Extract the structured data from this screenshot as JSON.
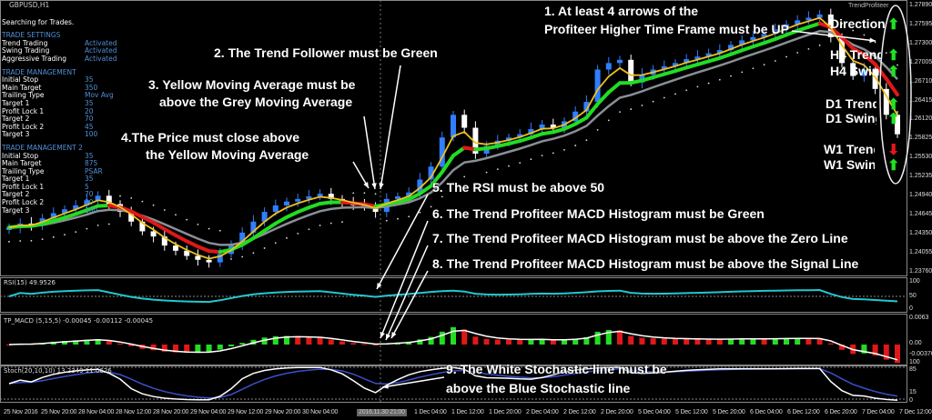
{
  "window": {
    "symbol": "GBPUSD,H1",
    "indicator_name": "TrendProfiteer"
  },
  "panel": {
    "status": "Searching for Trades.",
    "sections": [
      {
        "title": "TRADE SETTINGS",
        "rows": [
          [
            "Trend Trading",
            "Activated"
          ],
          [
            "Swing Trading",
            "Activated"
          ],
          [
            "Aggressive Trading",
            "Activated"
          ]
        ]
      },
      {
        "title": "TRADE MANAGEMENT",
        "rows": [
          [
            "Initial Stop",
            "35"
          ],
          [
            "Main Target",
            "350"
          ],
          [
            "Trailing Type",
            "Mov Avg"
          ],
          [
            "Target 1",
            "35"
          ],
          [
            "Profit Lock 1",
            "20"
          ],
          [
            "Target 2",
            "70"
          ],
          [
            "Profit Lock 2",
            "45"
          ],
          [
            "Target 3",
            "100"
          ]
        ]
      },
      {
        "title": "TRADE MANAGEMENT 2",
        "rows": [
          [
            "Initial Stop",
            "35"
          ],
          [
            "Main Target",
            "875"
          ],
          [
            "Trailing Type",
            "PSAR"
          ],
          [
            "Target 1",
            "35"
          ],
          [
            "Profit Lock 1",
            "5"
          ],
          [
            "Target 2",
            "70"
          ],
          [
            "Profit Lock 2",
            "20"
          ],
          [
            "Target 3",
            "100"
          ]
        ]
      }
    ]
  },
  "direction_panel": {
    "rows": [
      {
        "label": "Direction",
        "arrow": "up"
      },
      {
        "label": "H4 Trend",
        "arrow": "up"
      },
      {
        "label": "H4 Swing",
        "arrow": "up"
      },
      {
        "label": "D1 Trend",
        "arrow": "up"
      },
      {
        "label": "D1 Swing",
        "arrow": "up"
      },
      {
        "label": "W1 Trend",
        "arrow": "down"
      },
      {
        "label": "W1 Swing",
        "arrow": "up"
      }
    ],
    "colors": {
      "up": "#22e022",
      "down": "#e01818"
    }
  },
  "annotations": {
    "a1": [
      "1. At least 4 arrows of the",
      "Profiteer Higher Time Frame must be UP"
    ],
    "a2": "2. The Trend Follower must be Green",
    "a3": [
      "3. Yellow Moving Average must be",
      "above the Grey Moving Average"
    ],
    "a4": [
      "4.The Price must close above",
      "the Yellow Moving Average"
    ],
    "a5": "5. The RSI must be above 50",
    "a6": "6. The Trend Profiteer MACD Histogram must be Green",
    "a7": "7. The Trend Profiteer MACD Histogram must be above the Zero Line",
    "a8": "8. The Trend Profiteer MACD Histogram must be above the Signal Line",
    "a9": [
      "9. The White Stochastic line must be",
      "above the Blue Stochastic line"
    ]
  },
  "chart_data": {
    "type": "candlestick",
    "price_axis": {
      "ticks": [
        "1.27890",
        "1.27595",
        "1.27300",
        "1.27005",
        "1.26710",
        "1.26415",
        "1.26120",
        "1.25825",
        "1.25530",
        "1.25235",
        "1.24940",
        "1.24645",
        "1.24350",
        "1.24055",
        "1.23760"
      ],
      "range": [
        1.2376,
        1.2789
      ]
    },
    "time_axis": {
      "ticks": [
        "25 Nov 2016",
        "25 Nov 20:00",
        "28 Nov 04:00",
        "28 Nov 12:00",
        "28 Nov 20:00",
        "29 Nov 04:00",
        "29 Nov 12:00",
        "29 Nov 20:00",
        "30 Nov 04:00",
        "30 Nov 12:00",
        "1 Dec 04:00",
        "1 Dec 12:00",
        "1 Dec 20:00",
        "2 Dec 04:00",
        "2 Dec 12:00",
        "2 Dec 20:00",
        "5 Dec 04:00",
        "5 Dec 12:00",
        "5 Dec 20:00",
        "6 Dec 04:00",
        "6 Dec 12:00",
        "6 Dec 20:00",
        "7 Dec 04:00",
        "7 Dec 12:00"
      ],
      "crosshair_label": "2016.11.30 21:00"
    },
    "close": [
      1.2446,
      1.2452,
      1.2449,
      1.246,
      1.2468,
      1.2474,
      1.248,
      1.2488,
      1.2495,
      1.2482,
      1.247,
      1.2455,
      1.244,
      1.2432,
      1.2418,
      1.241,
      1.2402,
      1.2396,
      1.2392,
      1.2405,
      1.242,
      1.2438,
      1.2455,
      1.247,
      1.248,
      1.2486,
      1.249,
      1.2494,
      1.2498,
      1.249,
      1.2485,
      1.248,
      1.2478,
      1.247,
      1.249,
      1.2494,
      1.25,
      1.252,
      1.254,
      1.2585,
      1.262,
      1.26,
      1.256,
      1.2572,
      1.258,
      1.2585,
      1.259,
      1.2598,
      1.2605,
      1.26,
      1.261,
      1.2625,
      1.264,
      1.269,
      1.27,
      1.2705,
      1.267,
      1.2682,
      1.269,
      1.2695,
      1.27,
      1.2706,
      1.271,
      1.2715,
      1.272,
      1.2728,
      1.2735,
      1.274,
      1.2745,
      1.2752,
      1.276,
      1.2766,
      1.277,
      1.2775,
      1.274,
      1.27,
      1.268,
      1.269,
      1.266,
      1.262,
      1.259
    ],
    "colors": {
      "bull": "#2f7fff",
      "bear": "#ffffff",
      "fast_ma": "#f0c020",
      "slow_ma": "#8a8f96",
      "trend_up": "#22dd22",
      "trend_down": "#e01818",
      "rsi": "#22c8d0",
      "stoch_main": "#ffffff",
      "stoch_signal": "#3a50c8"
    },
    "rsi": {
      "label": "RSI(15) 49.9526",
      "ticks": [
        "100",
        "50",
        "0"
      ]
    },
    "macd": {
      "label": "TP_MACD (5,15,5) -0.00045 -0.00112 -0.00045",
      "ticks": [
        "0.0063",
        "0.00",
        "-0.00376"
      ]
    },
    "stoch": {
      "label": "Stoch(20,10,10) 13.2349 11.0626",
      "ticks": [
        "100",
        "85",
        "15",
        "0"
      ]
    }
  }
}
